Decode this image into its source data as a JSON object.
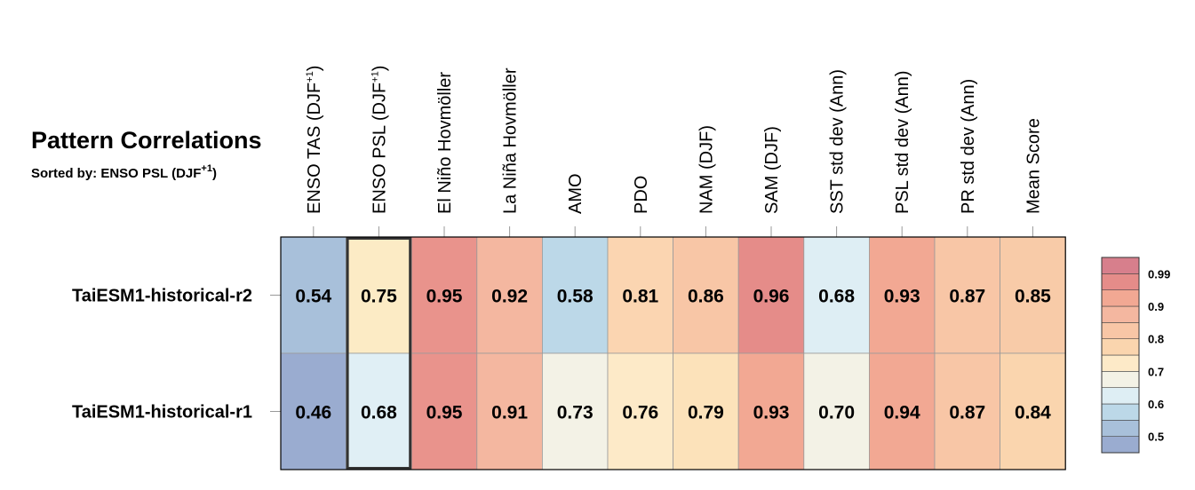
{
  "header": {
    "title": "Pattern Correlations",
    "sorted_label": "Sorted by: ENSO PSL (DJF",
    "sorted_sup": "+1",
    "sorted_close": ")"
  },
  "chart_data": {
    "type": "heatmap",
    "title": "Pattern Correlations",
    "subtitle": "Sorted by: ENSO PSL (DJF+1)",
    "columns": [
      {
        "label": "ENSO TAS (DJF",
        "sup": "+1",
        "close": ")"
      },
      {
        "label": "ENSO PSL (DJF",
        "sup": "+1",
        "close": ")"
      },
      {
        "label": "El Niño Hovmöller"
      },
      {
        "label": "La Niña Hovmöller"
      },
      {
        "label": "AMO"
      },
      {
        "label": "PDO"
      },
      {
        "label": "NAM (DJF)"
      },
      {
        "label": "SAM (DJF)"
      },
      {
        "label": "SST std dev (Ann)"
      },
      {
        "label": "PSL std dev (Ann)"
      },
      {
        "label": "PR std dev (Ann)"
      },
      {
        "label": "Mean Score"
      }
    ],
    "rows": [
      {
        "name": "TaiESM1-historical-r2",
        "values": [
          "0.54",
          "0.75",
          "0.95",
          "0.92",
          "0.58",
          "0.81",
          "0.86",
          "0.96",
          "0.68",
          "0.93",
          "0.87",
          "0.85"
        ],
        "colors": [
          "#a8c0da",
          "#fcebc5",
          "#e9938c",
          "#f4b7a0",
          "#bcd8e8",
          "#fbd5b1",
          "#f8c6a6",
          "#e58c89",
          "#deeef4",
          "#f2a893",
          "#f8c6a6",
          "#f8cba8"
        ]
      },
      {
        "name": "TaiESM1-historical-r1",
        "values": [
          "0.46",
          "0.68",
          "0.95",
          "0.91",
          "0.73",
          "0.76",
          "0.79",
          "0.93",
          "0.70",
          "0.94",
          "0.87",
          "0.84"
        ],
        "colors": [
          "#9aacd0",
          "#e0eff5",
          "#e9938c",
          "#f4b7a0",
          "#f3f2e6",
          "#fdeac8",
          "#fce2ba",
          "#f2a893",
          "#f3f2e6",
          "#f2a893",
          "#f8c6a6",
          "#fad5ae"
        ]
      }
    ],
    "highlighted_column": 1,
    "colorbar": {
      "colors": [
        "#9aacd0",
        "#a8c0da",
        "#bcd8e8",
        "#deeef4",
        "#f3f2e6",
        "#fdeac8",
        "#fad5ae",
        "#f8c6a6",
        "#f4b7a0",
        "#f2a893",
        "#e58c89",
        "#d77f8c"
      ],
      "tick_labels": [
        "0.5",
        "0.6",
        "0.7",
        "0.8",
        "0.9",
        "0.99"
      ]
    }
  }
}
